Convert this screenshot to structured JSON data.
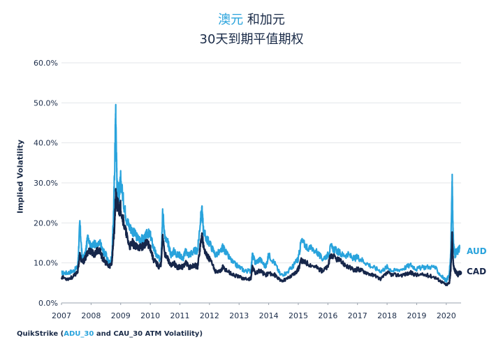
{
  "title": {
    "accent": "澳元",
    "rest": " 和加元",
    "line2": "30天到期平值期权"
  },
  "source": {
    "prefix": "QuikStrike (",
    "accent": "ADU_30",
    "suffix": " and CAU_30 ATM Volatility)"
  },
  "colors": {
    "aud": "#29a3dc",
    "cad": "#16264a",
    "grid": "#e3e6ea",
    "text": "#1a2b48"
  },
  "chart_data": {
    "type": "line",
    "title": "澳元 和加元 30天到期平值期权",
    "xlabel": "",
    "ylabel": "Implied Volatility",
    "ylim": [
      0,
      60
    ],
    "xlim": [
      2007,
      2020.5
    ],
    "yticks": [
      "0.0%",
      "10.0%",
      "20.0%",
      "30.0%",
      "40.0%",
      "50.0%",
      "60.0%"
    ],
    "xticks": [
      "2007",
      "2008",
      "2009",
      "2010",
      "2011",
      "2012",
      "2013",
      "2014",
      "2015",
      "2016",
      "2017",
      "2018",
      "2019",
      "2020"
    ],
    "grid": true,
    "legend": "inline-right",
    "series": [
      {
        "name": "AUD",
        "color": "#29a3dc",
        "x": [
          2007.0,
          2007.2,
          2007.4,
          2007.55,
          2007.62,
          2007.7,
          2007.8,
          2007.9,
          2008.0,
          2008.1,
          2008.2,
          2008.3,
          2008.4,
          2008.5,
          2008.6,
          2008.7,
          2008.75,
          2008.8,
          2008.83,
          2008.85,
          2008.88,
          2008.9,
          2008.95,
          2009.0,
          2009.1,
          2009.2,
          2009.3,
          2009.4,
          2009.5,
          2009.6,
          2009.7,
          2009.8,
          2009.9,
          2010.0,
          2010.1,
          2010.2,
          2010.3,
          2010.37,
          2010.42,
          2010.5,
          2010.6,
          2010.7,
          2010.8,
          2010.9,
          2011.0,
          2011.1,
          2011.2,
          2011.3,
          2011.4,
          2011.5,
          2011.6,
          2011.7,
          2011.75,
          2011.8,
          2011.9,
          2012.0,
          2012.2,
          2012.4,
          2012.45,
          2012.6,
          2012.8,
          2013.0,
          2013.2,
          2013.4,
          2013.45,
          2013.55,
          2013.7,
          2013.9,
          2014.0,
          2014.2,
          2014.4,
          2014.6,
          2014.8,
          2014.95,
          2015.0,
          2015.1,
          2015.3,
          2015.6,
          2015.8,
          2016.0,
          2016.1,
          2016.3,
          2016.5,
          2016.7,
          2016.9,
          2017.0,
          2017.2,
          2017.5,
          2017.8,
          2018.0,
          2018.2,
          2018.5,
          2018.8,
          2019.0,
          2019.3,
          2019.6,
          2019.8,
          2020.0,
          2020.1,
          2020.15,
          2020.2,
          2020.22,
          2020.25,
          2020.3,
          2020.35,
          2020.4,
          2020.45
        ],
        "values": [
          7.5,
          7.5,
          8.0,
          9.0,
          20.0,
          11.0,
          12.0,
          17.0,
          13.5,
          15.0,
          14.0,
          15.0,
          13.0,
          12.0,
          10.0,
          11.0,
          20.0,
          35.0,
          48.0,
          40.0,
          28.0,
          30.0,
          27.0,
          31.0,
          25.0,
          21.0,
          19.0,
          18.0,
          17.0,
          16.0,
          16.0,
          16.0,
          17.5,
          17.0,
          14.0,
          12.0,
          11.0,
          12.0,
          23.0,
          16.0,
          15.0,
          12.0,
          13.0,
          12.0,
          12.0,
          11.0,
          13.0,
          12.0,
          12.5,
          13.0,
          13.0,
          21.0,
          23.0,
          18.0,
          16.0,
          15.0,
          12.0,
          13.0,
          14.0,
          12.0,
          10.0,
          9.0,
          8.0,
          8.0,
          12.0,
          10.0,
          11.0,
          9.0,
          12.0,
          10.0,
          7.0,
          7.5,
          9.0,
          10.5,
          11.0,
          15.5,
          14.0,
          13.0,
          11.0,
          12.0,
          14.0,
          13.0,
          12.0,
          12.0,
          11.0,
          11.5,
          10.5,
          9.0,
          8.0,
          9.0,
          8.0,
          8.5,
          9.5,
          8.5,
          9.0,
          9.0,
          7.0,
          5.5,
          7.0,
          12.0,
          31.0,
          20.0,
          14.0,
          12.0,
          13.0,
          13.0,
          13.5
        ]
      },
      {
        "name": "CAD",
        "color": "#16264a",
        "x": [
          2007.0,
          2007.2,
          2007.4,
          2007.55,
          2007.62,
          2007.7,
          2007.8,
          2007.9,
          2008.0,
          2008.1,
          2008.2,
          2008.3,
          2008.4,
          2008.5,
          2008.6,
          2008.7,
          2008.75,
          2008.8,
          2008.83,
          2008.85,
          2008.88,
          2008.9,
          2008.95,
          2009.0,
          2009.1,
          2009.2,
          2009.3,
          2009.4,
          2009.5,
          2009.6,
          2009.7,
          2009.8,
          2009.9,
          2010.0,
          2010.1,
          2010.2,
          2010.3,
          2010.37,
          2010.42,
          2010.5,
          2010.6,
          2010.7,
          2010.8,
          2010.9,
          2011.0,
          2011.1,
          2011.2,
          2011.3,
          2011.4,
          2011.5,
          2011.6,
          2011.7,
          2011.75,
          2011.8,
          2011.9,
          2012.0,
          2012.2,
          2012.4,
          2012.45,
          2012.6,
          2012.8,
          2013.0,
          2013.2,
          2013.4,
          2013.45,
          2013.55,
          2013.7,
          2013.9,
          2014.0,
          2014.2,
          2014.4,
          2014.6,
          2014.8,
          2014.95,
          2015.0,
          2015.1,
          2015.3,
          2015.6,
          2015.8,
          2016.0,
          2016.1,
          2016.3,
          2016.5,
          2016.7,
          2016.9,
          2017.0,
          2017.2,
          2017.5,
          2017.8,
          2018.0,
          2018.2,
          2018.5,
          2018.8,
          2019.0,
          2019.3,
          2019.6,
          2019.8,
          2020.0,
          2020.1,
          2020.15,
          2020.2,
          2020.22,
          2020.25,
          2020.3,
          2020.35,
          2020.4,
          2020.45
        ],
        "values": [
          6.5,
          6.0,
          6.5,
          8.0,
          12.0,
          10.0,
          11.0,
          13.0,
          13.0,
          12.0,
          13.0,
          13.0,
          11.0,
          10.0,
          9.0,
          10.0,
          15.0,
          20.0,
          27.0,
          26.0,
          24.0,
          25.0,
          23.0,
          24.0,
          20.0,
          17.0,
          14.0,
          15.0,
          14.0,
          14.0,
          14.0,
          14.5,
          15.0,
          14.0,
          11.0,
          10.0,
          9.0,
          10.0,
          17.0,
          12.0,
          11.0,
          9.0,
          10.0,
          9.0,
          9.0,
          9.0,
          10.0,
          9.0,
          9.0,
          9.5,
          9.0,
          15.0,
          17.0,
          14.0,
          12.0,
          11.0,
          8.0,
          8.0,
          9.0,
          8.0,
          7.0,
          6.5,
          6.0,
          6.0,
          9.0,
          7.5,
          8.0,
          7.0,
          7.5,
          7.0,
          5.5,
          6.0,
          7.0,
          8.0,
          8.5,
          10.5,
          10.0,
          9.0,
          8.0,
          9.0,
          12.0,
          11.0,
          10.0,
          9.0,
          8.0,
          8.5,
          8.0,
          7.0,
          6.0,
          7.5,
          7.0,
          7.0,
          7.5,
          7.0,
          7.0,
          6.5,
          5.5,
          4.5,
          5.0,
          8.0,
          17.5,
          12.0,
          9.0,
          8.0,
          7.5,
          7.0,
          7.5
        ]
      }
    ]
  }
}
